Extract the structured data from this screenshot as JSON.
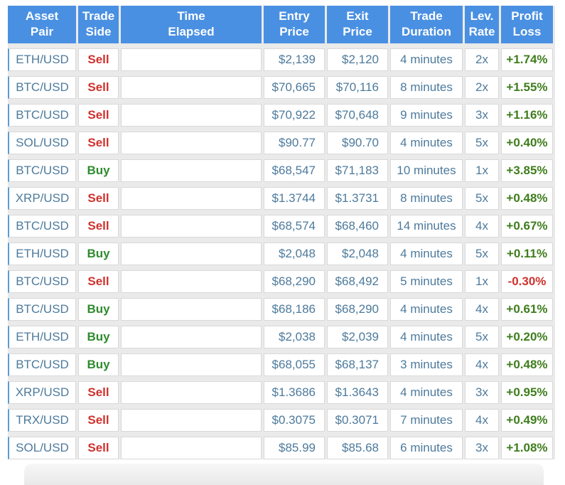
{
  "colors": {
    "header_bg": "#4a90e2",
    "header_text": "#ffffff",
    "body_text": "#4d7a9c",
    "sell_red": "#d0312d",
    "buy_green": "#2e8b2e",
    "gain_green": "#3e7d1c",
    "loss_red": "#d0312d",
    "row_accent": "#5b9bd5",
    "cell_border": "#d9d9d9",
    "table_gap": "#eaeaea",
    "page_bg": "#ffffff"
  },
  "table": {
    "columns": [
      {
        "key": "asset_pair",
        "line1": "Asset",
        "line2": "Pair"
      },
      {
        "key": "trade_side",
        "line1": "Trade",
        "line2": "Side"
      },
      {
        "key": "time_elapsed",
        "line1": "Time",
        "line2": "Elapsed"
      },
      {
        "key": "entry_price",
        "line1": "Entry",
        "line2": "Price"
      },
      {
        "key": "exit_price",
        "line1": "Exit",
        "line2": "Price"
      },
      {
        "key": "trade_duration",
        "line1": "Trade",
        "line2": "Duration"
      },
      {
        "key": "lev_rate",
        "line1": "Lev.",
        "line2": "Rate"
      },
      {
        "key": "profit_loss",
        "line1": "Profit",
        "line2": "Loss"
      }
    ],
    "rows": [
      {
        "asset_pair": "ETH/USD",
        "trade_side": "Sell",
        "side_type": "sell",
        "time_elapsed": "",
        "entry_price": "$2,139",
        "exit_price": "$2,120",
        "trade_duration": "4 minutes",
        "lev_rate": "2x",
        "profit_loss": "+1.74%",
        "profit_type": "gain"
      },
      {
        "asset_pair": "BTC/USD",
        "trade_side": "Sell",
        "side_type": "sell",
        "time_elapsed": "",
        "entry_price": "$70,665",
        "exit_price": "$70,116",
        "trade_duration": "8 minutes",
        "lev_rate": "2x",
        "profit_loss": "+1.55%",
        "profit_type": "gain"
      },
      {
        "asset_pair": "BTC/USD",
        "trade_side": "Sell",
        "side_type": "sell",
        "time_elapsed": "",
        "entry_price": "$70,922",
        "exit_price": "$70,648",
        "trade_duration": "9 minutes",
        "lev_rate": "3x",
        "profit_loss": "+1.16%",
        "profit_type": "gain"
      },
      {
        "asset_pair": "SOL/USD",
        "trade_side": "Sell",
        "side_type": "sell",
        "time_elapsed": "",
        "entry_price": "$90.77",
        "exit_price": "$90.70",
        "trade_duration": "4 minutes",
        "lev_rate": "5x",
        "profit_loss": "+0.40%",
        "profit_type": "gain"
      },
      {
        "asset_pair": "BTC/USD",
        "trade_side": "Buy",
        "side_type": "buy",
        "time_elapsed": "",
        "entry_price": "$68,547",
        "exit_price": "$71,183",
        "trade_duration": "10 minutes",
        "lev_rate": "1x",
        "profit_loss": "+3.85%",
        "profit_type": "gain"
      },
      {
        "asset_pair": "XRP/USD",
        "trade_side": "Sell",
        "side_type": "sell",
        "time_elapsed": "",
        "entry_price": "$1.3744",
        "exit_price": "$1.3731",
        "trade_duration": "8 minutes",
        "lev_rate": "5x",
        "profit_loss": "+0.48%",
        "profit_type": "gain"
      },
      {
        "asset_pair": "BTC/USD",
        "trade_side": "Sell",
        "side_type": "sell",
        "time_elapsed": "",
        "entry_price": "$68,574",
        "exit_price": "$68,460",
        "trade_duration": "14 minutes",
        "lev_rate": "4x",
        "profit_loss": "+0.67%",
        "profit_type": "gain"
      },
      {
        "asset_pair": "ETH/USD",
        "trade_side": "Buy",
        "side_type": "buy",
        "time_elapsed": "",
        "entry_price": "$2,048",
        "exit_price": "$2,048",
        "trade_duration": "4 minutes",
        "lev_rate": "5x",
        "profit_loss": "+0.11%",
        "profit_type": "gain"
      },
      {
        "asset_pair": "BTC/USD",
        "trade_side": "Sell",
        "side_type": "sell",
        "time_elapsed": "",
        "entry_price": "$68,290",
        "exit_price": "$68,492",
        "trade_duration": "5 minutes",
        "lev_rate": "1x",
        "profit_loss": "-0.30%",
        "profit_type": "loss"
      },
      {
        "asset_pair": "BTC/USD",
        "trade_side": "Buy",
        "side_type": "buy",
        "time_elapsed": "",
        "entry_price": "$68,186",
        "exit_price": "$68,290",
        "trade_duration": "4 minutes",
        "lev_rate": "4x",
        "profit_loss": "+0.61%",
        "profit_type": "gain"
      },
      {
        "asset_pair": "ETH/USD",
        "trade_side": "Buy",
        "side_type": "buy",
        "time_elapsed": "",
        "entry_price": "$2,038",
        "exit_price": "$2,039",
        "trade_duration": "4 minutes",
        "lev_rate": "5x",
        "profit_loss": "+0.20%",
        "profit_type": "gain"
      },
      {
        "asset_pair": "BTC/USD",
        "trade_side": "Buy",
        "side_type": "buy",
        "time_elapsed": "",
        "entry_price": "$68,055",
        "exit_price": "$68,137",
        "trade_duration": "3 minutes",
        "lev_rate": "4x",
        "profit_loss": "+0.48%",
        "profit_type": "gain"
      },
      {
        "asset_pair": "XRP/USD",
        "trade_side": "Sell",
        "side_type": "sell",
        "time_elapsed": "",
        "entry_price": "$1.3686",
        "exit_price": "$1.3643",
        "trade_duration": "4 minutes",
        "lev_rate": "3x",
        "profit_loss": "+0.95%",
        "profit_type": "gain"
      },
      {
        "asset_pair": "TRX/USD",
        "trade_side": "Sell",
        "side_type": "sell",
        "time_elapsed": "",
        "entry_price": "$0.3075",
        "exit_price": "$0.3071",
        "trade_duration": "7 minutes",
        "lev_rate": "4x",
        "profit_loss": "+0.49%",
        "profit_type": "gain"
      },
      {
        "asset_pair": "SOL/USD",
        "trade_side": "Sell",
        "side_type": "sell",
        "time_elapsed": "",
        "entry_price": "$85.99",
        "exit_price": "$85.68",
        "trade_duration": "6 minutes",
        "lev_rate": "3x",
        "profit_loss": "+1.08%",
        "profit_type": "gain"
      }
    ]
  }
}
